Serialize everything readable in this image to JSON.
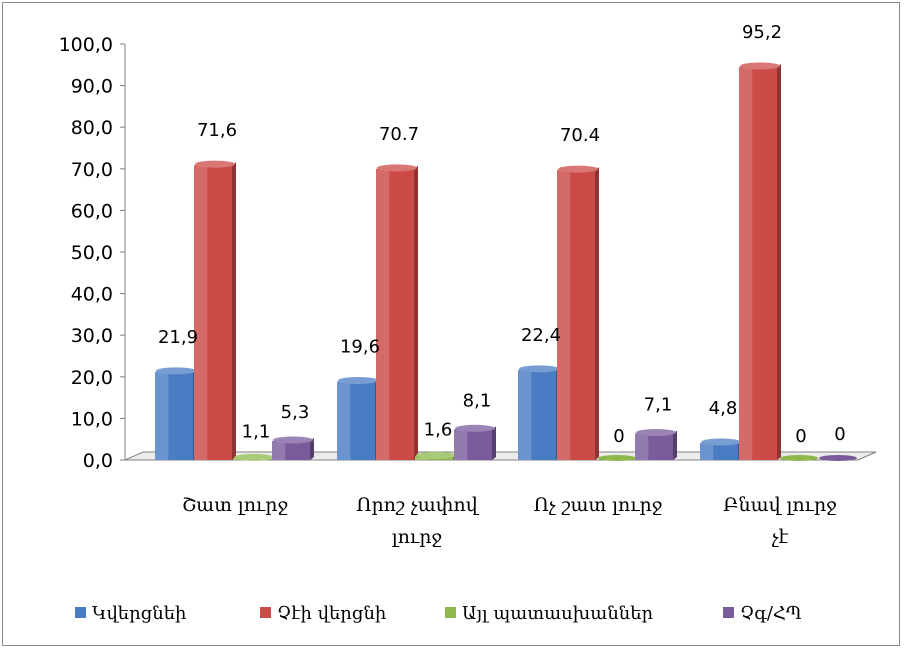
{
  "chart_data": {
    "type": "bar",
    "title": "",
    "xlabel": "",
    "ylabel": "",
    "ylim": [
      0,
      100
    ],
    "yticks": [
      "0,0",
      "10,0",
      "20,0",
      "30,0",
      "40,0",
      "50,0",
      "60,0",
      "70,0",
      "80,0",
      "90,0",
      "100,0"
    ],
    "categories": [
      [
        "Շատ լուրջ"
      ],
      [
        "Որոշ չափով",
        "լուրջ"
      ],
      [
        "Ոչ շատ լուրջ"
      ],
      [
        "Բնավ լուրջ",
        "չէ"
      ]
    ],
    "series": [
      {
        "name": "Կվերցնեի",
        "color": "#4a7cc4",
        "values": [
          21.9,
          19.6,
          22.4,
          4.8
        ],
        "labels": [
          "21,9",
          "19,6",
          "22,4",
          "4,8"
        ]
      },
      {
        "name": "Չէի վերցնի",
        "color": "#cc4a47",
        "values": [
          71.6,
          70.7,
          70.4,
          95.2
        ],
        "labels": [
          "71,6",
          "70.7",
          "70.4",
          "95,2"
        ]
      },
      {
        "name": "Այլ պատասխաններ",
        "color": "#8fb84a",
        "values": [
          1.1,
          1.6,
          0,
          0
        ],
        "labels": [
          "1,1",
          "1,6",
          "0",
          "0"
        ]
      },
      {
        "name": "Չգ/ՀՊ",
        "color": "#7a5b9c",
        "values": [
          5.3,
          8.1,
          7.1,
          0
        ],
        "labels": [
          "5,3",
          "8,1",
          "7,1",
          "0"
        ]
      }
    ],
    "legend_position": "bottom",
    "grid": false
  }
}
